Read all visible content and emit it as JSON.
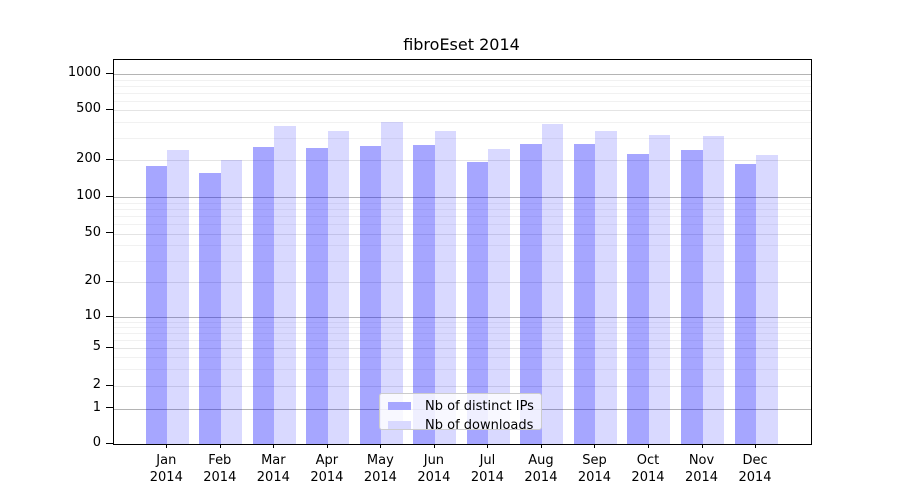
{
  "chart_data": {
    "type": "bar",
    "title": "fibroEset 2014",
    "categories": [
      "Jan 2014",
      "Feb 2014",
      "Mar 2014",
      "Apr 2014",
      "May 2014",
      "Jun 2014",
      "Jul 2014",
      "Aug 2014",
      "Sep 2014",
      "Oct 2014",
      "Nov 2014",
      "Dec 2014"
    ],
    "series": [
      {
        "name": "Nb of distinct IPs",
        "color": "#a6a6ff",
        "values": [
          180,
          158,
          253,
          252,
          258,
          265,
          192,
          272,
          270,
          226,
          243,
          186
        ]
      },
      {
        "name": "Nb of downloads",
        "color": "#d9d9ff",
        "values": [
          240,
          200,
          376,
          345,
          404,
          345,
          245,
          386,
          342,
          316,
          310,
          220
        ]
      }
    ],
    "xlabel": "",
    "ylabel": "",
    "yscale": "symlog",
    "yticks": [
      0,
      1,
      2,
      5,
      10,
      20,
      50,
      100,
      200,
      500,
      1000
    ],
    "minor_gridlines": [
      3,
      4,
      6,
      7,
      8,
      9,
      30,
      40,
      60,
      70,
      80,
      90,
      300,
      400,
      600,
      700,
      800,
      900
    ],
    "ylim": [
      0,
      1300
    ],
    "grid": true,
    "legend_position": "lower center"
  }
}
